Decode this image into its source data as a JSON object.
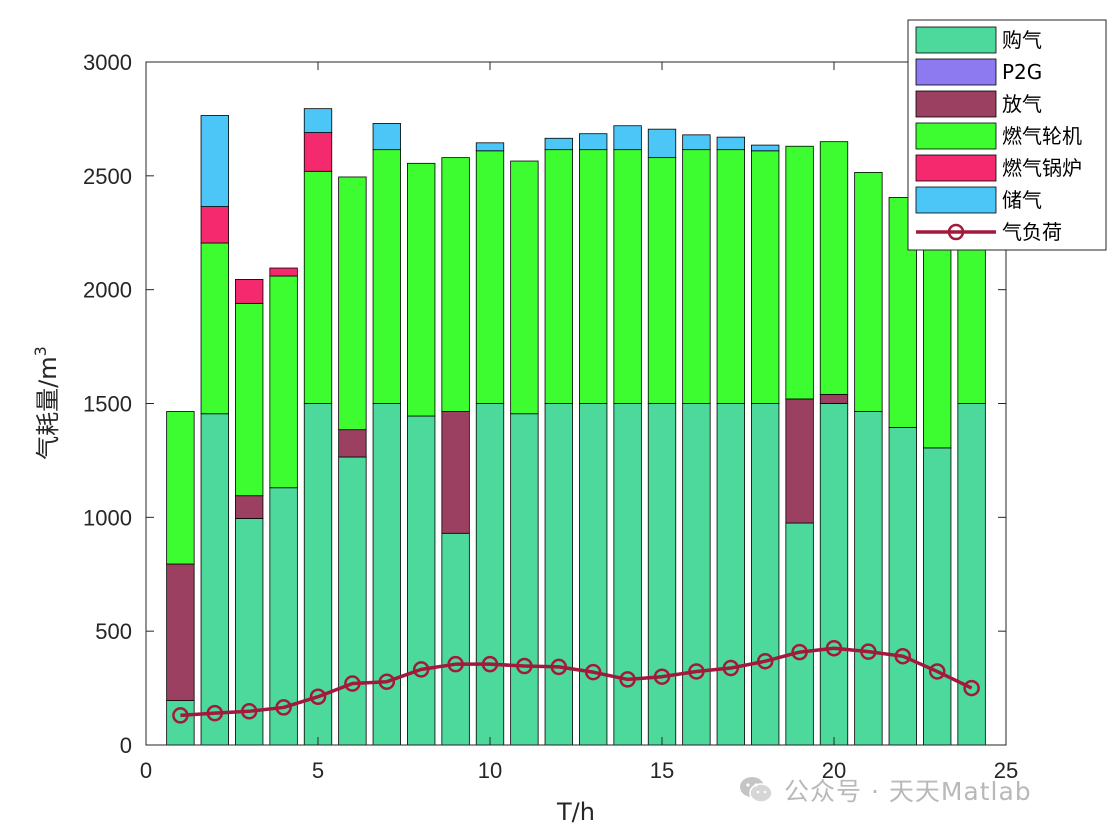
{
  "chart_data": {
    "type": "bar",
    "stacked": true,
    "xlabel": "T/h",
    "ylabel": "气耗量/m",
    "ylabel_superscript": "3",
    "xlim": [
      0,
      25
    ],
    "ylim": [
      0,
      3000
    ],
    "xticks": [
      0,
      5,
      10,
      15,
      20,
      25
    ],
    "yticks": [
      0,
      500,
      1000,
      1500,
      2000,
      2500,
      3000
    ],
    "legend_position": "top-right",
    "x": [
      1,
      2,
      3,
      4,
      5,
      6,
      7,
      8,
      9,
      10,
      11,
      12,
      13,
      14,
      15,
      16,
      17,
      18,
      19,
      20,
      21,
      22,
      23,
      24
    ],
    "series": [
      {
        "name": "购气",
        "color": "#4dd99b",
        "values": [
          195,
          1455,
          995,
          1130,
          1500,
          1265,
          1500,
          1445,
          930,
          1500,
          1455,
          1500,
          1500,
          1500,
          1500,
          1500,
          1500,
          1500,
          975,
          1500,
          1465,
          1395,
          1305,
          1500
        ]
      },
      {
        "name": "P2G",
        "color": "#8d7af0",
        "values": [
          0,
          0,
          0,
          0,
          0,
          0,
          0,
          0,
          0,
          0,
          0,
          0,
          0,
          0,
          0,
          0,
          0,
          0,
          0,
          0,
          0,
          0,
          0,
          0
        ]
      },
      {
        "name": "放气",
        "color": "#9b4060",
        "values": [
          600,
          0,
          100,
          0,
          0,
          120,
          0,
          0,
          535,
          0,
          0,
          0,
          0,
          0,
          0,
          0,
          0,
          0,
          545,
          40,
          0,
          0,
          0,
          0
        ]
      },
      {
        "name": "燃气轮机",
        "color": "#3dfc2f",
        "values": [
          670,
          750,
          845,
          930,
          1020,
          1110,
          1115,
          1110,
          1115,
          1110,
          1110,
          1115,
          1115,
          1115,
          1080,
          1115,
          1115,
          1110,
          1110,
          1110,
          1050,
          1010,
          1185,
          740
        ]
      },
      {
        "name": "燃气锅炉",
        "color": "#f5296e",
        "values": [
          0,
          160,
          105,
          35,
          170,
          0,
          0,
          0,
          0,
          0,
          0,
          0,
          0,
          0,
          0,
          0,
          0,
          0,
          0,
          0,
          0,
          0,
          0,
          0
        ]
      },
      {
        "name": "储气",
        "color": "#4cc6f7",
        "values": [
          0,
          400,
          0,
          0,
          105,
          0,
          115,
          0,
          0,
          35,
          0,
          50,
          70,
          105,
          125,
          65,
          55,
          25,
          0,
          0,
          0,
          0,
          0,
          0
        ]
      }
    ],
    "line_series": {
      "name": "气负荷",
      "color": "#a3193c",
      "values": [
        130,
        140,
        148,
        165,
        212,
        270,
        278,
        332,
        355,
        355,
        347,
        343,
        320,
        288,
        300,
        323,
        338,
        368,
        408,
        425,
        410,
        390,
        323,
        250
      ]
    }
  },
  "watermark": {
    "text": "公众号 · 天天Matlab",
    "icon": "wechat-icon"
  }
}
